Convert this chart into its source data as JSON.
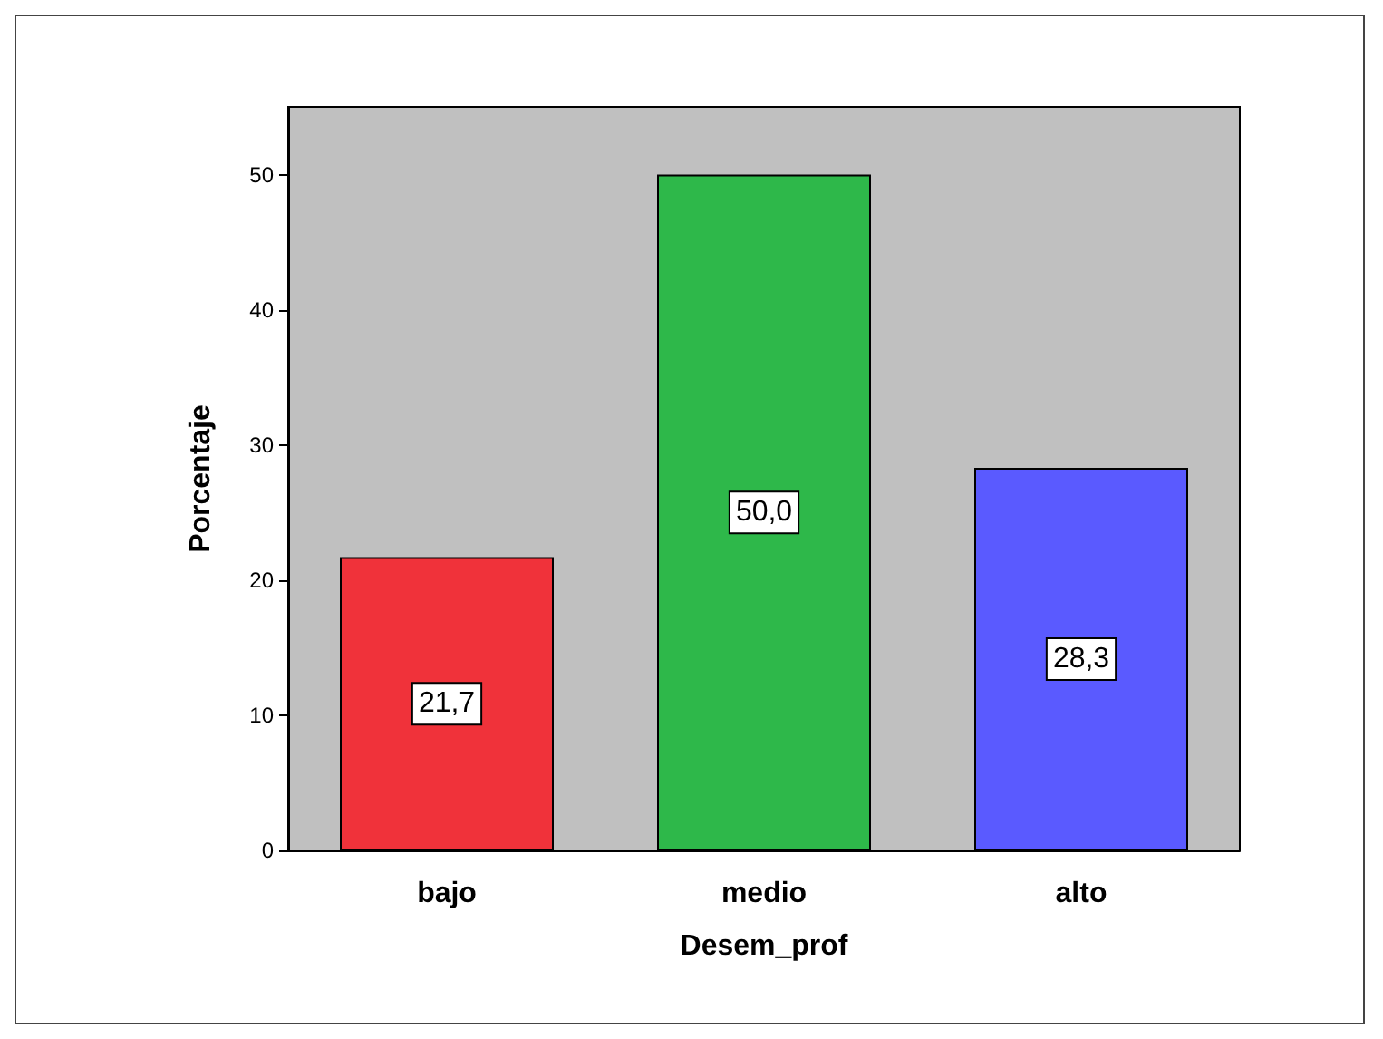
{
  "chart_data": {
    "type": "bar",
    "xlabel": "Desem_prof",
    "ylabel": "Porcentaje",
    "categories": [
      "bajo",
      "medio",
      "alto"
    ],
    "values": [
      21.7,
      50.0,
      28.3
    ],
    "colors": [
      "#f0323a",
      "#2eb84a",
      "#5a5aff"
    ],
    "value_labels": [
      "21,7",
      "50,0",
      "28,3"
    ],
    "ylim": [
      0,
      55
    ],
    "yticks": [
      0,
      10,
      20,
      30,
      40,
      50
    ],
    "grid": false
  }
}
